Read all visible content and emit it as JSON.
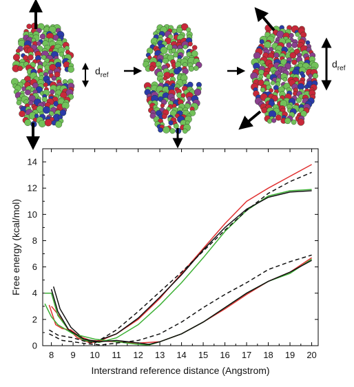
{
  "figure": {
    "dref_label_main": "d",
    "dref_label_sub": "ref",
    "colors": {
      "atom_green": "#72c15a",
      "atom_red": "#c8283a",
      "atom_blue": "#2b3aa8",
      "atom_purple": "#8a3f8e"
    }
  },
  "chart_data": {
    "type": "line",
    "title": "",
    "xlabel": "Interstrand reference distance (Angstrom)",
    "ylabel": "Free energy (kcal/mol)",
    "xlim": [
      7.6,
      20.3
    ],
    "ylim": [
      0,
      15
    ],
    "xticks": [
      8,
      9,
      10,
      11,
      12,
      13,
      14,
      15,
      16,
      17,
      18,
      19,
      20
    ],
    "yticks": [
      0,
      2,
      4,
      6,
      8,
      10,
      12,
      14
    ],
    "legend": "none",
    "grid": false,
    "series": [
      {
        "color": "#e03030",
        "dash": "solid",
        "x": [
          8.0,
          8.3,
          8.7,
          9.2,
          9.8,
          10.2,
          11.0,
          12.0,
          13.0,
          14.0,
          15.0,
          16.0,
          17.0,
          18.0,
          19.0,
          20.0
        ],
        "y": [
          3.0,
          2.4,
          1.4,
          0.6,
          0.2,
          0.35,
          0.9,
          2.0,
          3.6,
          5.5,
          7.4,
          9.3,
          11.0,
          12.0,
          12.9,
          13.8
        ]
      },
      {
        "color": "#3cb034",
        "dash": "solid",
        "x": [
          7.7,
          8.0,
          8.3,
          8.8,
          9.5,
          10.2,
          11.0,
          12.0,
          13.0,
          14.0,
          15.0,
          16.0,
          17.0,
          18.0,
          19.0,
          20.0
        ],
        "y": [
          4.0,
          4.0,
          2.3,
          1.2,
          0.4,
          0.25,
          0.6,
          1.6,
          3.1,
          4.8,
          6.7,
          8.7,
          10.3,
          11.4,
          11.8,
          11.9
        ]
      },
      {
        "color": "#111111",
        "dash": "solid",
        "x": [
          8.1,
          8.4,
          8.9,
          9.5,
          10.0,
          11.0,
          12.0,
          13.0,
          14.0,
          15.0,
          16.0,
          17.0,
          18.0,
          19.0,
          20.0
        ],
        "y": [
          4.5,
          2.8,
          1.4,
          0.5,
          0.3,
          0.9,
          2.1,
          3.7,
          5.4,
          7.3,
          9.0,
          10.4,
          11.3,
          11.7,
          11.8
        ]
      },
      {
        "color": "#111111",
        "dash": "dashed",
        "x": [
          7.9,
          8.3,
          9.0,
          9.5,
          10.0,
          11.0,
          12.0,
          13.0,
          14.0,
          15.0,
          16.0,
          17.0,
          18.0,
          19.0,
          20.0
        ],
        "y": [
          1.2,
          0.8,
          0.6,
          0.35,
          0.2,
          1.2,
          2.6,
          4.1,
          5.6,
          7.2,
          8.8,
          10.3,
          11.6,
          12.5,
          13.2
        ]
      },
      {
        "color": "#e03030",
        "dash": "solid",
        "x": [
          7.9,
          8.2,
          8.5,
          8.9,
          9.3,
          9.8,
          10.3,
          11.0,
          12.0,
          13.0,
          14.0,
          15.0,
          16.0,
          17.0,
          18.0,
          19.0,
          20.0
        ],
        "y": [
          3.1,
          1.6,
          1.3,
          1.2,
          0.7,
          0.4,
          0.35,
          0.3,
          0.2,
          0.3,
          0.9,
          1.8,
          2.8,
          3.9,
          4.9,
          5.6,
          6.7
        ]
      },
      {
        "color": "#3cb034",
        "dash": "solid",
        "x": [
          7.7,
          8.0,
          8.3,
          9.0,
          10.0,
          11.0,
          12.0,
          12.5,
          13.0,
          14.0,
          15.0,
          16.0,
          17.0,
          18.0,
          19.0,
          20.0
        ],
        "y": [
          3.2,
          2.2,
          1.6,
          0.9,
          0.5,
          0.3,
          0.1,
          0.05,
          0.3,
          0.9,
          1.8,
          2.9,
          4.0,
          4.9,
          5.5,
          6.6
        ]
      },
      {
        "color": "#111111",
        "dash": "solid",
        "x": [
          8.0,
          8.3,
          8.8,
          9.5,
          10.2,
          11.0,
          11.8,
          12.5,
          13.0,
          14.0,
          15.0,
          16.0,
          17.0,
          18.0,
          19.0,
          20.0
        ],
        "y": [
          4.3,
          2.6,
          1.2,
          0.5,
          0.3,
          0.4,
          0.25,
          0.1,
          0.3,
          0.9,
          1.8,
          2.9,
          4.0,
          4.9,
          5.6,
          6.5
        ]
      },
      {
        "color": "#111111",
        "dash": "dashed",
        "x": [
          7.9,
          8.5,
          9.0,
          9.6,
          10.3,
          11.0,
          12.0,
          13.0,
          14.0,
          15.0,
          16.0,
          17.0,
          18.0,
          19.0,
          20.0
        ],
        "y": [
          0.9,
          0.4,
          0.3,
          0.15,
          0.05,
          0.2,
          0.4,
          0.9,
          1.8,
          2.9,
          3.9,
          4.8,
          5.8,
          6.4,
          6.9
        ]
      }
    ]
  }
}
